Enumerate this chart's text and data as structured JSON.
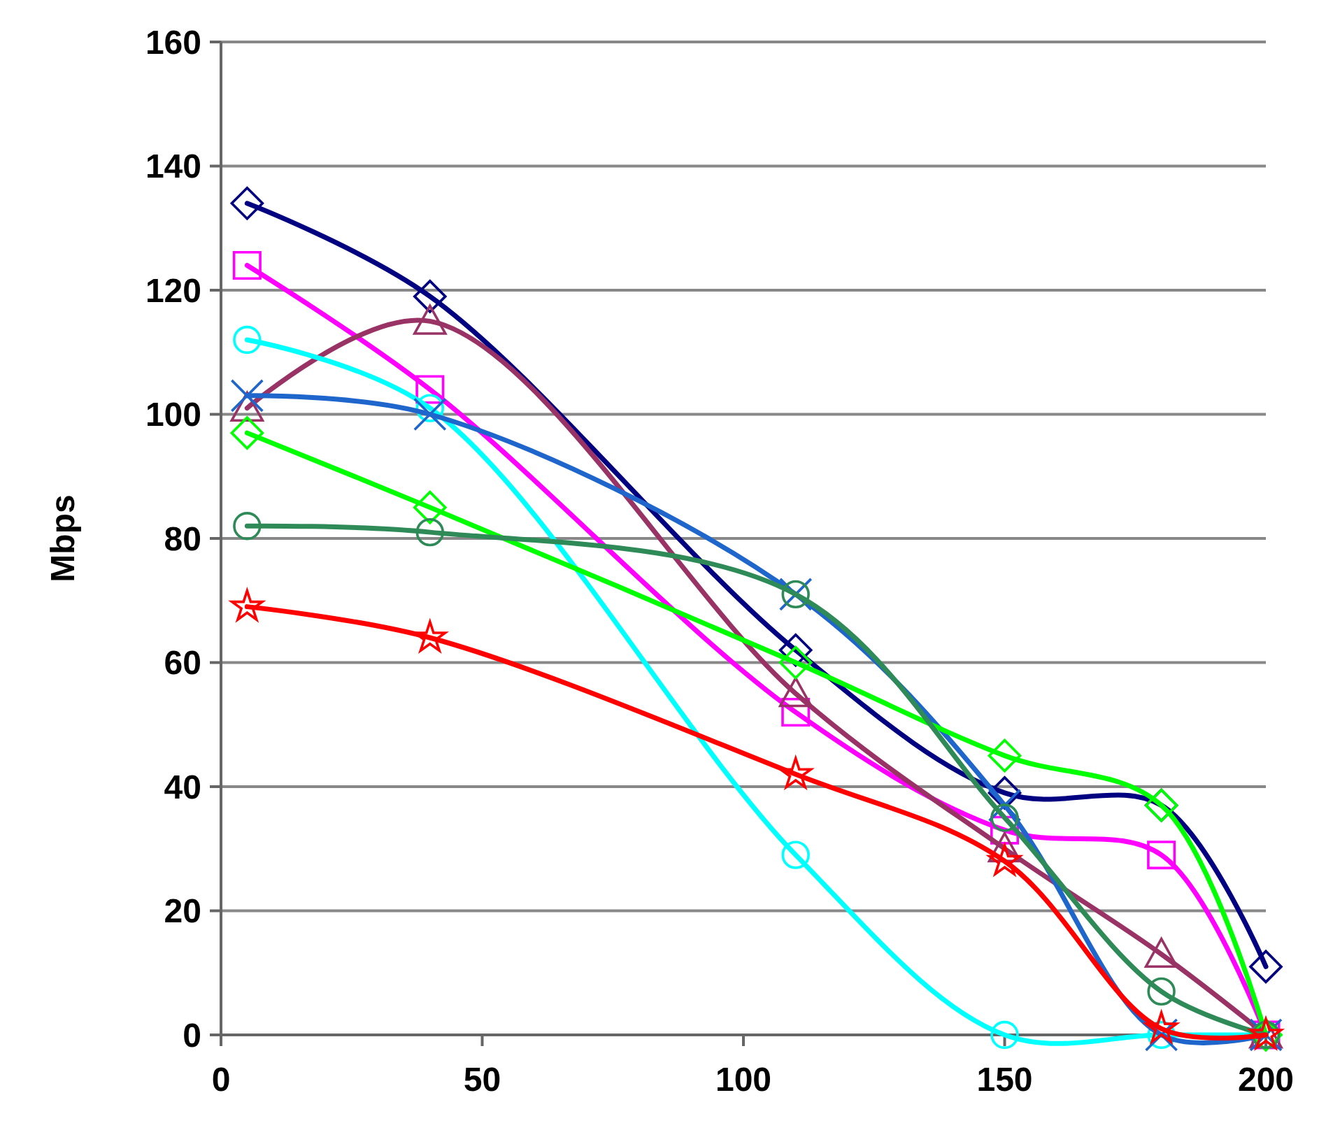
{
  "chart_data": {
    "type": "line",
    "ylabel": "Mbps",
    "x": [
      5,
      40,
      110,
      150,
      180,
      200
    ],
    "xlim": [
      0,
      200
    ],
    "xticks": [
      0,
      50,
      100,
      150,
      200
    ],
    "ylim": [
      0,
      160
    ],
    "yticks": [
      0,
      20,
      40,
      60,
      80,
      100,
      120,
      140,
      160
    ],
    "grid": "y",
    "line_style": "solid",
    "series": [
      {
        "color": "#000080",
        "marker": "diamond",
        "values": [
          134,
          119,
          62,
          39,
          37,
          11
        ]
      },
      {
        "color": "#ff00ff",
        "marker": "square",
        "values": [
          124,
          104,
          52,
          33,
          29,
          0
        ]
      },
      {
        "color": "#993366",
        "marker": "triangle",
        "values": [
          101,
          115,
          55,
          30,
          13,
          0
        ]
      },
      {
        "color": "#00ffff",
        "marker": "circle",
        "values": [
          112,
          101,
          29,
          0,
          0,
          0
        ]
      },
      {
        "color": "#1f66cc",
        "marker": "cross",
        "values": [
          103,
          100,
          71,
          37,
          0,
          0
        ]
      },
      {
        "color": "#00ff00",
        "marker": "diamond",
        "values": [
          97,
          85,
          60,
          45,
          37,
          0
        ]
      },
      {
        "color": "#2e8b57",
        "marker": "circle",
        "values": [
          82,
          81,
          71,
          35,
          7,
          0
        ]
      },
      {
        "color": "#ff0000",
        "marker": "star",
        "values": [
          69,
          64,
          42,
          28,
          1,
          0
        ]
      }
    ]
  }
}
